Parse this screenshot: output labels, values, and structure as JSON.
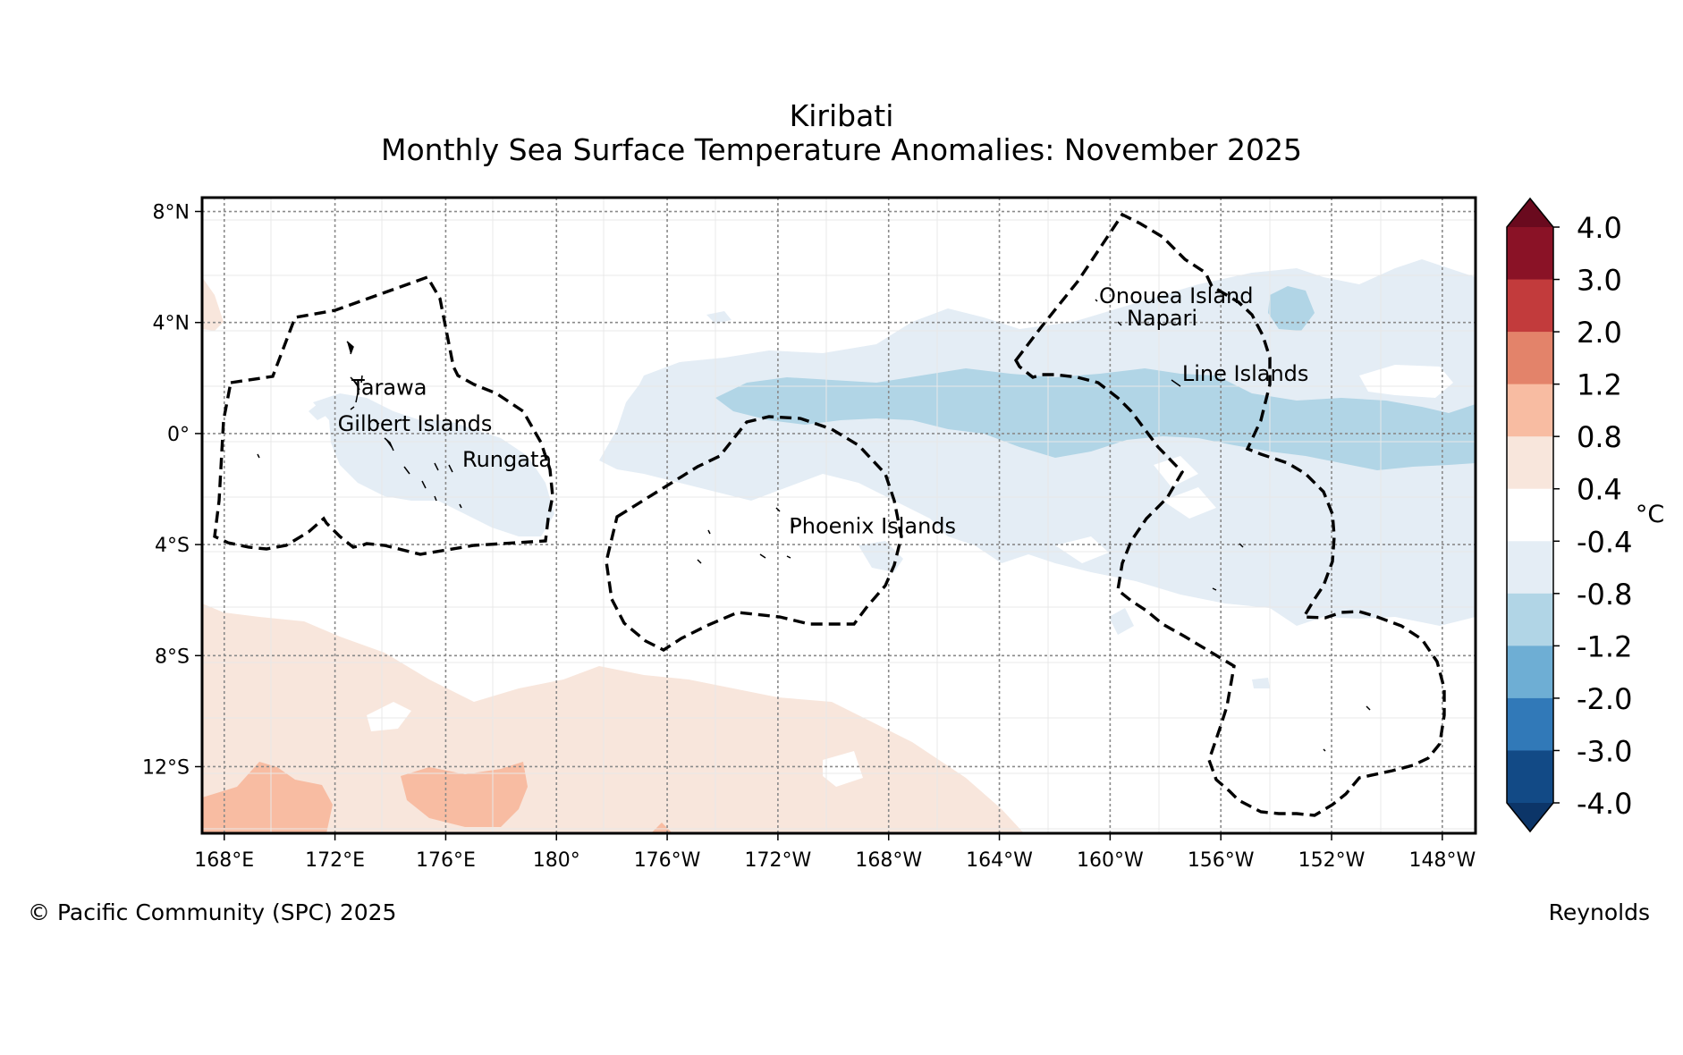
{
  "title": "Kiribati",
  "subtitle": "Monthly Sea Surface Temperature Anomalies: November 2025",
  "map": {
    "extent": {
      "lon_min": 167.2,
      "lon_max": 213.2,
      "lat_min": -14.4,
      "lat_max": 8.5
    },
    "lat_ticks": [
      {
        "value": 8,
        "label": "8°N"
      },
      {
        "value": 4,
        "label": "4°N"
      },
      {
        "value": 0,
        "label": "0°"
      },
      {
        "value": -4,
        "label": "4°S"
      },
      {
        "value": -8,
        "label": "8°S"
      },
      {
        "value": -12,
        "label": "12°S"
      }
    ],
    "lon_ticks": [
      {
        "value": 168,
        "label": "168°E"
      },
      {
        "value": 172,
        "label": "172°E"
      },
      {
        "value": 176,
        "label": "176°E"
      },
      {
        "value": 180,
        "label": "180°"
      },
      {
        "value": 184,
        "label": "176°W"
      },
      {
        "value": 188,
        "label": "172°W"
      },
      {
        "value": 192,
        "label": "168°W"
      },
      {
        "value": 196,
        "label": "164°W"
      },
      {
        "value": 200,
        "label": "160°W"
      },
      {
        "value": 204,
        "label": "156°W"
      },
      {
        "value": 208,
        "label": "152°W"
      },
      {
        "value": 212,
        "label": "148°W"
      }
    ],
    "place_labels": [
      {
        "name": "Tarawa",
        "lon": 172.6,
        "lat": 1.4
      },
      {
        "name": "Gilbert Islands",
        "lon": 172.1,
        "lat": 0.1
      },
      {
        "name": "Rungata",
        "lon": 176.6,
        "lat": -1.2
      },
      {
        "name": "Phoenix Islands",
        "lon": 188.4,
        "lat": -3.6
      },
      {
        "name": "Onouea Island",
        "lon": 199.6,
        "lat": 4.7
      },
      {
        "name": "Napari",
        "lon": 200.6,
        "lat": 3.9
      },
      {
        "name": "Line Islands",
        "lon": 202.6,
        "lat": 1.9
      }
    ]
  },
  "colorbar": {
    "unit_label": "°C",
    "tick_labels": [
      "4.0",
      "3.0",
      "2.0",
      "1.2",
      "0.8",
      "0.4",
      "-0.4",
      "-0.8",
      "-1.2",
      "-2.0",
      "-3.0",
      "-4.0"
    ],
    "bin_colors": [
      "#8a1226",
      "#c23b3c",
      "#e3836a",
      "#f8bca2",
      "#f8e6dc",
      "#ffffff",
      "#e4edf5",
      "#b1d5e6",
      "#6eaed4",
      "#3179b8",
      "#124a86"
    ],
    "over_color": "#6a0a1e",
    "under_color": "#0c3568"
  },
  "credit": "© Pacific Community (SPC) 2025",
  "source": "Reynolds"
}
